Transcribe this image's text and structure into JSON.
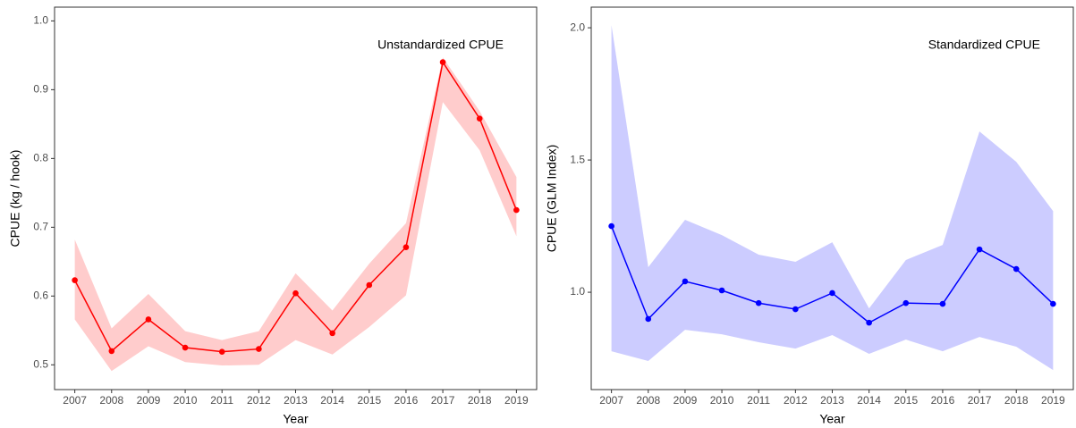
{
  "chart_data": [
    {
      "type": "line",
      "annotation": "Unstandardized CPUE",
      "xlabel": "Year",
      "ylabel": "CPUE (kg / hook)",
      "x": [
        2007,
        2008,
        2009,
        2010,
        2011,
        2012,
        2013,
        2014,
        2015,
        2016,
        2017,
        2018,
        2019
      ],
      "values": [
        0.623,
        0.52,
        0.566,
        0.525,
        0.519,
        0.523,
        0.604,
        0.546,
        0.616,
        0.671,
        0.94,
        0.858,
        0.725
      ],
      "lower": [
        0.566,
        0.491,
        0.527,
        0.504,
        0.499,
        0.5,
        0.536,
        0.515,
        0.555,
        0.601,
        0.882,
        0.812,
        0.687
      ],
      "upper": [
        0.682,
        0.553,
        0.603,
        0.549,
        0.536,
        0.549,
        0.633,
        0.579,
        0.647,
        0.706,
        0.947,
        0.869,
        0.773
      ],
      "color": "#ff0000",
      "band_color": "#ffcccc",
      "xlim": [
        2006.45,
        2019.55
      ],
      "xticks": [
        2007,
        2008,
        2009,
        2010,
        2011,
        2012,
        2013,
        2014,
        2015,
        2016,
        2017,
        2018,
        2019
      ],
      "ylim": [
        0.464,
        1.02
      ],
      "yticks": [
        0.5,
        0.6,
        0.7,
        0.8,
        0.9,
        {
          "value": 1,
          "label": "1.0"
        }
      ]
    },
    {
      "type": "line",
      "annotation": "Standardized CPUE",
      "xlabel": "Year",
      "ylabel": "CPUE (GLM Index)",
      "x": [
        2007,
        2008,
        2009,
        2010,
        2011,
        2012,
        2013,
        2014,
        2015,
        2016,
        2017,
        2018,
        2019
      ],
      "values": [
        1.25,
        0.899,
        1.041,
        1.007,
        0.959,
        0.936,
        0.997,
        0.885,
        0.959,
        0.956,
        1.162,
        1.088,
        0.956
      ],
      "lower": [
        0.777,
        0.74,
        0.858,
        0.841,
        0.811,
        0.787,
        0.838,
        0.767,
        0.821,
        0.777,
        0.831,
        0.794,
        0.706
      ],
      "upper": [
        2.01,
        1.095,
        1.274,
        1.216,
        1.142,
        1.115,
        1.189,
        0.939,
        1.122,
        1.179,
        1.608,
        1.493,
        1.307
      ],
      "color": "#0000ff",
      "band_color": "#ccccff",
      "xlim": [
        2006.45,
        2019.55
      ],
      "xticks": [
        2007,
        2008,
        2009,
        2010,
        2011,
        2012,
        2013,
        2014,
        2015,
        2016,
        2017,
        2018,
        2019
      ],
      "ylim": [
        0.632,
        2.078
      ],
      "yticks": [
        {
          "value": 1,
          "label": "1.0"
        },
        1.5,
        {
          "value": 2,
          "label": "2.0"
        }
      ]
    }
  ]
}
